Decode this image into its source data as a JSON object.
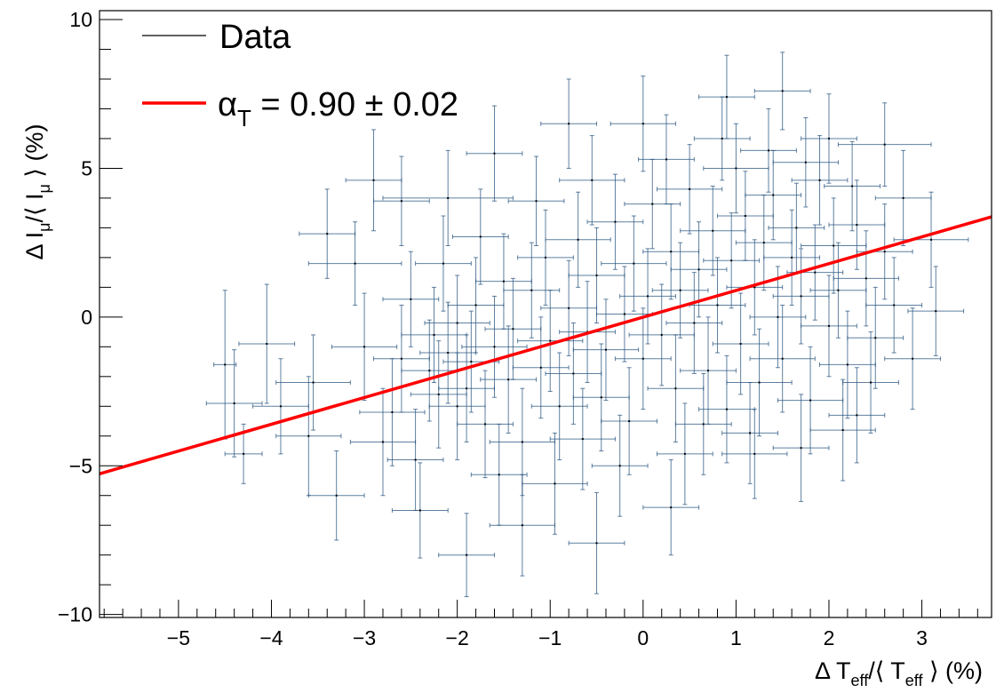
{
  "chart_data": {
    "type": "scatter",
    "xlabel": "Δ T_eff/⟨ T_eff ⟩ (%)",
    "ylabel": "Δ I_μ/⟨ I_μ ⟩ (%)",
    "xlim": [
      -5.85,
      3.75
    ],
    "ylim": [
      -10.1,
      10.3
    ],
    "x_ticks": [
      "-5",
      "-4",
      "-3",
      "-2",
      "-1",
      "0",
      "1",
      "2",
      "3"
    ],
    "y_ticks": [
      "-10",
      "-5",
      "0",
      "5",
      "10"
    ],
    "grid": false,
    "legend_position": "top-left",
    "colors": {
      "data": "#2a5580",
      "data_point": "#000000",
      "fit": "#ff0000",
      "frame": "#000000"
    },
    "series": [
      {
        "name": "Data",
        "kind": "points-with-error-bars",
        "points": [
          {
            "x": -4.5,
            "y": -1.6,
            "xerr": 0.12,
            "yerr": 2.5
          },
          {
            "x": -4.4,
            "y": -2.9,
            "xerr": 0.3,
            "yerr": 1.8
          },
          {
            "x": -4.3,
            "y": -4.6,
            "xerr": 0.2,
            "yerr": 1.0
          },
          {
            "x": -4.05,
            "y": -0.9,
            "xerr": 0.3,
            "yerr": 2.0
          },
          {
            "x": -3.9,
            "y": -3.0,
            "xerr": 0.3,
            "yerr": 1.6
          },
          {
            "x": -3.6,
            "y": -4.0,
            "xerr": 0.35,
            "yerr": 2.0
          },
          {
            "x": -3.55,
            "y": -2.2,
            "xerr": 0.4,
            "yerr": 1.6
          },
          {
            "x": -3.4,
            "y": 2.8,
            "xerr": 0.3,
            "yerr": 1.5
          },
          {
            "x": -3.3,
            "y": -6.0,
            "xerr": 0.3,
            "yerr": 1.5
          },
          {
            "x": -3.1,
            "y": 1.8,
            "xerr": 0.5,
            "yerr": 1.4
          },
          {
            "x": -3.0,
            "y": -1.0,
            "xerr": 0.35,
            "yerr": 1.8
          },
          {
            "x": -2.9,
            "y": 4.6,
            "xerr": 0.3,
            "yerr": 1.7
          },
          {
            "x": -2.8,
            "y": -4.2,
            "xerr": 0.35,
            "yerr": 1.8
          },
          {
            "x": -2.6,
            "y": 3.9,
            "xerr": 0.3,
            "yerr": 1.5
          },
          {
            "x": -2.4,
            "y": -6.5,
            "xerr": 0.3,
            "yerr": 1.6
          },
          {
            "x": -2.1,
            "y": 4.0,
            "xerr": 0.7,
            "yerr": 1.6
          },
          {
            "x": -2.0,
            "y": -3.0,
            "xerr": 0.3,
            "yerr": 1.8
          },
          {
            "x": -1.9,
            "y": -8.0,
            "xerr": 0.3,
            "yerr": 1.4
          },
          {
            "x": -1.6,
            "y": 5.5,
            "xerr": 0.3,
            "yerr": 1.6
          },
          {
            "x": -1.3,
            "y": -7.0,
            "xerr": 0.35,
            "yerr": 1.7
          },
          {
            "x": -0.8,
            "y": 6.5,
            "xerr": 0.3,
            "yerr": 1.5
          },
          {
            "x": -0.5,
            "y": -7.6,
            "xerr": 0.3,
            "yerr": 1.7
          },
          {
            "x": 0.0,
            "y": 6.5,
            "xerr": 0.35,
            "yerr": 1.6
          },
          {
            "x": 0.3,
            "y": -6.4,
            "xerr": 0.3,
            "yerr": 1.6
          },
          {
            "x": 0.9,
            "y": 7.4,
            "xerr": 0.3,
            "yerr": 1.4
          },
          {
            "x": 1.2,
            "y": -4.6,
            "xerr": 0.35,
            "yerr": 1.5
          },
          {
            "x": 1.5,
            "y": 7.6,
            "xerr": 0.3,
            "yerr": 1.3
          },
          {
            "x": 1.7,
            "y": -4.4,
            "xerr": 0.3,
            "yerr": 1.8
          },
          {
            "x": 2.0,
            "y": 6.0,
            "xerr": 0.3,
            "yerr": 1.5
          },
          {
            "x": 2.3,
            "y": -3.3,
            "xerr": 0.3,
            "yerr": 1.6
          },
          {
            "x": 2.6,
            "y": 5.8,
            "xerr": 0.5,
            "yerr": 1.4
          },
          {
            "x": 2.8,
            "y": 4.0,
            "xerr": 0.3,
            "yerr": 1.6
          },
          {
            "x": 2.9,
            "y": -1.4,
            "xerr": 0.3,
            "yerr": 1.7
          },
          {
            "x": 3.1,
            "y": 2.6,
            "xerr": 0.4,
            "yerr": 1.6
          },
          {
            "x": 3.15,
            "y": 0.2,
            "xerr": 0.3,
            "yerr": 1.5
          },
          {
            "x": -2.3,
            "y": -1.8,
            "xerr": 0.3,
            "yerr": 1.7
          },
          {
            "x": -2.25,
            "y": -0.6,
            "xerr": 0.35,
            "yerr": 1.6
          },
          {
            "x": -2.2,
            "y": -2.6,
            "xerr": 0.3,
            "yerr": 1.8
          },
          {
            "x": -2.1,
            "y": -1.2,
            "xerr": 0.3,
            "yerr": 1.7
          },
          {
            "x": -2.0,
            "y": -0.2,
            "xerr": 0.35,
            "yerr": 1.6
          },
          {
            "x": -1.9,
            "y": -2.4,
            "xerr": 0.3,
            "yerr": 1.8
          },
          {
            "x": -1.85,
            "y": -1.5,
            "xerr": 0.3,
            "yerr": 1.7
          },
          {
            "x": -1.8,
            "y": 0.4,
            "xerr": 0.3,
            "yerr": 1.6
          },
          {
            "x": -1.7,
            "y": -3.6,
            "xerr": 0.3,
            "yerr": 1.8
          },
          {
            "x": -1.6,
            "y": -1.0,
            "xerr": 0.35,
            "yerr": 1.7
          },
          {
            "x": -1.5,
            "y": 1.2,
            "xerr": 0.3,
            "yerr": 1.6
          },
          {
            "x": -1.45,
            "y": -2.1,
            "xerr": 0.3,
            "yerr": 1.8
          },
          {
            "x": -1.4,
            "y": -0.4,
            "xerr": 0.3,
            "yerr": 1.7
          },
          {
            "x": -1.3,
            "y": -4.2,
            "xerr": 0.35,
            "yerr": 1.8
          },
          {
            "x": -1.2,
            "y": 0.9,
            "xerr": 0.3,
            "yerr": 1.6
          },
          {
            "x": -1.1,
            "y": -1.7,
            "xerr": 0.3,
            "yerr": 1.7
          },
          {
            "x": -1.05,
            "y": 2.0,
            "xerr": 0.3,
            "yerr": 1.6
          },
          {
            "x": -1.0,
            "y": -0.8,
            "xerr": 0.35,
            "yerr": 1.7
          },
          {
            "x": -0.9,
            "y": -3.0,
            "xerr": 0.3,
            "yerr": 1.8
          },
          {
            "x": -0.8,
            "y": 0.3,
            "xerr": 0.3,
            "yerr": 1.6
          },
          {
            "x": -0.75,
            "y": -1.9,
            "xerr": 0.3,
            "yerr": 1.7
          },
          {
            "x": -0.7,
            "y": 2.6,
            "xerr": 0.35,
            "yerr": 1.6
          },
          {
            "x": -0.6,
            "y": -0.5,
            "xerr": 0.3,
            "yerr": 1.7
          },
          {
            "x": -0.5,
            "y": 1.4,
            "xerr": 0.3,
            "yerr": 1.6
          },
          {
            "x": -0.45,
            "y": -2.7,
            "xerr": 0.3,
            "yerr": 1.8
          },
          {
            "x": -0.4,
            "y": -1.1,
            "xerr": 0.35,
            "yerr": 1.7
          },
          {
            "x": -0.3,
            "y": 3.2,
            "xerr": 0.3,
            "yerr": 1.6
          },
          {
            "x": -0.2,
            "y": 0.1,
            "xerr": 0.3,
            "yerr": 1.6
          },
          {
            "x": -0.15,
            "y": -3.5,
            "xerr": 0.3,
            "yerr": 1.8
          },
          {
            "x": -0.1,
            "y": 1.8,
            "xerr": 0.35,
            "yerr": 1.6
          },
          {
            "x": 0.0,
            "y": -1.4,
            "xerr": 0.3,
            "yerr": 1.7
          },
          {
            "x": 0.05,
            "y": 0.7,
            "xerr": 0.3,
            "yerr": 1.6
          },
          {
            "x": 0.1,
            "y": 3.8,
            "xerr": 0.3,
            "yerr": 1.5
          },
          {
            "x": 0.2,
            "y": -0.6,
            "xerr": 0.35,
            "yerr": 1.7
          },
          {
            "x": 0.3,
            "y": 2.2,
            "xerr": 0.3,
            "yerr": 1.6
          },
          {
            "x": 0.35,
            "y": -2.4,
            "xerr": 0.3,
            "yerr": 1.8
          },
          {
            "x": 0.4,
            "y": 0.9,
            "xerr": 0.3,
            "yerr": 1.6
          },
          {
            "x": 0.5,
            "y": 4.3,
            "xerr": 0.35,
            "yerr": 1.5
          },
          {
            "x": 0.55,
            "y": -0.2,
            "xerr": 0.3,
            "yerr": 1.7
          },
          {
            "x": 0.6,
            "y": 1.6,
            "xerr": 0.3,
            "yerr": 1.6
          },
          {
            "x": 0.7,
            "y": -1.8,
            "xerr": 0.3,
            "yerr": 1.8
          },
          {
            "x": 0.75,
            "y": 2.9,
            "xerr": 0.35,
            "yerr": 1.5
          },
          {
            "x": 0.8,
            "y": 0.4,
            "xerr": 0.3,
            "yerr": 1.6
          },
          {
            "x": 0.9,
            "y": -3.1,
            "xerr": 0.3,
            "yerr": 1.8
          },
          {
            "x": 0.95,
            "y": 1.9,
            "xerr": 0.3,
            "yerr": 1.6
          },
          {
            "x": 1.0,
            "y": 5.0,
            "xerr": 0.35,
            "yerr": 1.5
          },
          {
            "x": 1.05,
            "y": -0.9,
            "xerr": 0.3,
            "yerr": 1.7
          },
          {
            "x": 1.1,
            "y": 3.4,
            "xerr": 0.3,
            "yerr": 1.5
          },
          {
            "x": 1.2,
            "y": 1.0,
            "xerr": 0.3,
            "yerr": 1.6
          },
          {
            "x": 1.25,
            "y": -2.2,
            "xerr": 0.35,
            "yerr": 1.8
          },
          {
            "x": 1.3,
            "y": 2.5,
            "xerr": 0.3,
            "yerr": 1.6
          },
          {
            "x": 1.4,
            "y": 4.1,
            "xerr": 0.3,
            "yerr": 1.5
          },
          {
            "x": 1.45,
            "y": 0.0,
            "xerr": 0.3,
            "yerr": 1.7
          },
          {
            "x": 1.5,
            "y": -1.4,
            "xerr": 0.35,
            "yerr": 1.8
          },
          {
            "x": 1.6,
            "y": 2.0,
            "xerr": 0.3,
            "yerr": 1.6
          },
          {
            "x": 1.65,
            "y": 3.0,
            "xerr": 0.3,
            "yerr": 1.5
          },
          {
            "x": 1.7,
            "y": 0.7,
            "xerr": 0.3,
            "yerr": 1.6
          },
          {
            "x": 1.8,
            "y": -2.8,
            "xerr": 0.35,
            "yerr": 1.8
          },
          {
            "x": 1.85,
            "y": 1.5,
            "xerr": 0.3,
            "yerr": 1.6
          },
          {
            "x": 1.9,
            "y": 4.6,
            "xerr": 0.3,
            "yerr": 1.5
          },
          {
            "x": 2.0,
            "y": -0.3,
            "xerr": 0.3,
            "yerr": 1.7
          },
          {
            "x": 2.05,
            "y": 2.4,
            "xerr": 0.35,
            "yerr": 1.6
          },
          {
            "x": 2.1,
            "y": 0.9,
            "xerr": 0.3,
            "yerr": 1.6
          },
          {
            "x": 2.2,
            "y": -1.6,
            "xerr": 0.3,
            "yerr": 1.8
          },
          {
            "x": 2.3,
            "y": 3.1,
            "xerr": 0.3,
            "yerr": 1.5
          },
          {
            "x": 2.4,
            "y": 1.3,
            "xerr": 0.35,
            "yerr": 1.6
          },
          {
            "x": 2.5,
            "y": -0.7,
            "xerr": 0.3,
            "yerr": 1.7
          },
          {
            "x": 2.6,
            "y": 2.2,
            "xerr": 0.3,
            "yerr": 1.6
          },
          {
            "x": 2.7,
            "y": 0.4,
            "xerr": 0.3,
            "yerr": 1.6
          },
          {
            "x": -2.6,
            "y": -1.4,
            "xerr": 0.3,
            "yerr": 1.8
          },
          {
            "x": -2.7,
            "y": -3.2,
            "xerr": 0.35,
            "yerr": 1.8
          },
          {
            "x": -2.5,
            "y": 0.6,
            "xerr": 0.3,
            "yerr": 1.6
          },
          {
            "x": -2.45,
            "y": -4.8,
            "xerr": 0.3,
            "yerr": 1.7
          },
          {
            "x": -1.55,
            "y": -5.3,
            "xerr": 0.3,
            "yerr": 1.7
          },
          {
            "x": -0.95,
            "y": -5.6,
            "xerr": 0.35,
            "yerr": 1.7
          },
          {
            "x": -0.25,
            "y": -5.0,
            "xerr": 0.3,
            "yerr": 1.7
          },
          {
            "x": 0.45,
            "y": -4.6,
            "xerr": 0.3,
            "yerr": 1.7
          },
          {
            "x": -1.15,
            "y": 3.9,
            "xerr": 0.3,
            "yerr": 1.5
          },
          {
            "x": -0.55,
            "y": 4.6,
            "xerr": 0.35,
            "yerr": 1.5
          },
          {
            "x": 0.25,
            "y": 5.3,
            "xerr": 0.3,
            "yerr": 1.5
          },
          {
            "x": 0.85,
            "y": 6.0,
            "xerr": 0.3,
            "yerr": 1.4
          },
          {
            "x": 1.35,
            "y": 5.6,
            "xerr": 0.3,
            "yerr": 1.4
          },
          {
            "x": 1.75,
            "y": 5.2,
            "xerr": 0.35,
            "yerr": 1.5
          },
          {
            "x": 2.25,
            "y": 4.4,
            "xerr": 0.3,
            "yerr": 1.5
          },
          {
            "x": 1.15,
            "y": -3.9,
            "xerr": 0.3,
            "yerr": 1.7
          },
          {
            "x": 0.65,
            "y": -3.6,
            "xerr": 0.3,
            "yerr": 1.7
          },
          {
            "x": -0.65,
            "y": -4.1,
            "xerr": 0.35,
            "yerr": 1.7
          },
          {
            "x": -2.15,
            "y": 1.8,
            "xerr": 0.3,
            "yerr": 1.6
          },
          {
            "x": -1.75,
            "y": 2.7,
            "xerr": 0.3,
            "yerr": 1.6
          },
          {
            "x": 2.45,
            "y": -2.2,
            "xerr": 0.3,
            "yerr": 1.7
          },
          {
            "x": 2.15,
            "y": -3.8,
            "xerr": 0.35,
            "yerr": 1.7
          }
        ]
      },
      {
        "name": "α_T = 0.90 ± 0.02",
        "kind": "line",
        "x": [
          -5.85,
          3.75
        ],
        "y": [
          -5.27,
          3.37
        ]
      }
    ],
    "legend": {
      "entries": [
        {
          "label": "Data",
          "style": "thin-line",
          "color": "#000000"
        },
        {
          "label_main": "α",
          "label_sub": "T",
          "label_rest": " = 0.90 ± 0.02",
          "style": "thick-line",
          "color": "#ff0000"
        }
      ]
    }
  }
}
